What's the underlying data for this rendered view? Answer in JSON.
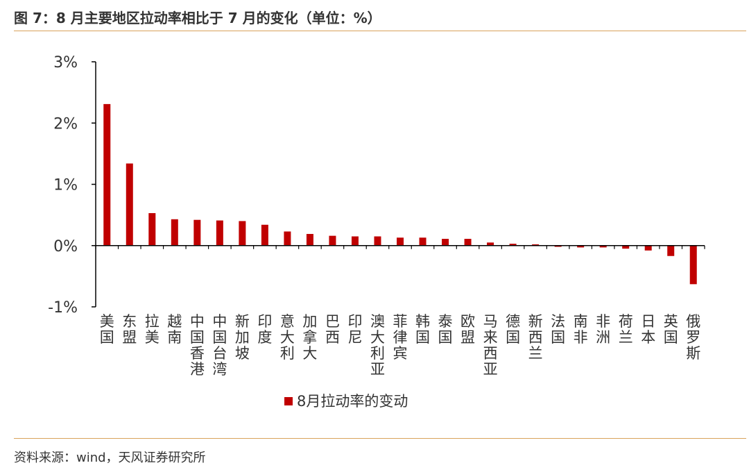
{
  "figure": {
    "title": "图 7：8 月主要地区拉动率相比于 7 月的变化（单位：%）",
    "source": "资料来源：wind，天风证券研究所"
  },
  "colors": {
    "bar": "#c00000",
    "rule": "#d9a25a",
    "axis": "#000000"
  },
  "chart_data": {
    "type": "bar",
    "categories": [
      "美国",
      "东盟",
      "拉美",
      "越南",
      "中国香港",
      "中国台湾",
      "新加坡",
      "印度",
      "意大利",
      "加拿大",
      "巴西",
      "印尼",
      "澳大利亚",
      "菲律宾",
      "韩国",
      "泰国",
      "欧盟",
      "马来西亚",
      "德国",
      "新西兰",
      "法国",
      "南非",
      "非洲",
      "荷兰",
      "日本",
      "英国",
      "俄罗斯"
    ],
    "series": [
      {
        "name": "8月拉动率的变动",
        "values": [
          2.31,
          1.34,
          0.53,
          0.43,
          0.42,
          0.41,
          0.4,
          0.34,
          0.23,
          0.19,
          0.16,
          0.15,
          0.15,
          0.13,
          0.13,
          0.11,
          0.11,
          0.05,
          0.03,
          0.02,
          -0.02,
          -0.03,
          -0.03,
          -0.05,
          -0.08,
          -0.17,
          -0.63
        ]
      }
    ],
    "ylim": [
      -1,
      3
    ],
    "yticks": [
      "3%",
      "2%",
      "1%",
      "0%",
      "-1%"
    ],
    "ytick_values": [
      3,
      2,
      1,
      0,
      -1
    ],
    "xlabel": "",
    "ylabel": "",
    "legend_position": "bottom-center",
    "grid": false
  }
}
